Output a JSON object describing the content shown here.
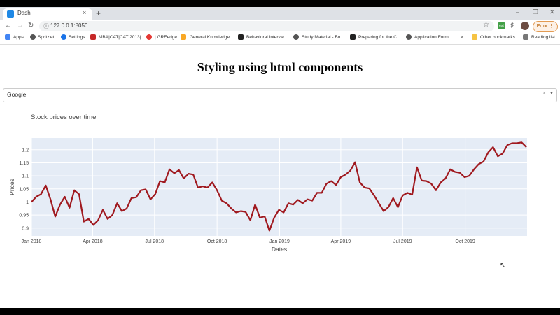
{
  "browser": {
    "tab_title": "Dash",
    "tab_close": "×",
    "new_tab": "+",
    "url": "127.0.0.1:8050",
    "error_button": "Error",
    "bookmarks": [
      "Apps",
      "Spritzlet",
      "Settings",
      "MBA|CAT|CAT 2013|...",
      "| GREedge",
      "General Knowledge...",
      "Behavioral Intervie...",
      "Study Material - Bo...",
      "Preparing for the C...",
      "Application Form"
    ],
    "other_bookmarks": "Other bookmarks",
    "reading_list": "Reading list",
    "overflow": "»"
  },
  "page": {
    "title": "Styling using html components",
    "dropdown_value": "Google",
    "dropdown_clear": "×"
  },
  "chart_data": {
    "type": "line",
    "title": "Stock prices over time",
    "xlabel": "Dates",
    "ylabel": "Prices",
    "line_color": "#a0191f",
    "plot_bg": "#e5ecf6",
    "xlim": [
      "2018-01-01",
      "2019-12-31"
    ],
    "ylim": [
      0.87,
      1.245
    ],
    "xticks": [
      {
        "date": "2018-01-01",
        "label": "Jan 2018"
      },
      {
        "date": "2018-04-01",
        "label": "Apr 2018"
      },
      {
        "date": "2018-07-01",
        "label": "Jul 2018"
      },
      {
        "date": "2018-10-01",
        "label": "Oct 2018"
      },
      {
        "date": "2019-01-01",
        "label": "Jan 2019"
      },
      {
        "date": "2019-04-01",
        "label": "Apr 2019"
      },
      {
        "date": "2019-07-01",
        "label": "Jul 2019"
      },
      {
        "date": "2019-10-01",
        "label": "Oct 2019"
      }
    ],
    "yticks": [
      0.9,
      0.95,
      1,
      1.05,
      1.1,
      1.15,
      1.2
    ],
    "series": [
      {
        "dates": [
          "2018-01-01",
          "2018-01-08",
          "2018-01-15",
          "2018-01-22",
          "2018-01-29",
          "2018-02-05",
          "2018-02-12",
          "2018-02-19",
          "2018-02-26",
          "2018-03-05",
          "2018-03-12",
          "2018-03-19",
          "2018-03-26",
          "2018-04-02",
          "2018-04-09",
          "2018-04-16",
          "2018-04-23",
          "2018-04-30",
          "2018-05-07",
          "2018-05-14",
          "2018-05-21",
          "2018-05-28",
          "2018-06-04",
          "2018-06-11",
          "2018-06-18",
          "2018-06-25",
          "2018-07-02",
          "2018-07-09",
          "2018-07-16",
          "2018-07-23",
          "2018-07-30",
          "2018-08-06",
          "2018-08-13",
          "2018-08-20",
          "2018-08-27",
          "2018-09-03",
          "2018-09-10",
          "2018-09-17",
          "2018-09-24",
          "2018-10-01",
          "2018-10-08",
          "2018-10-15",
          "2018-10-22",
          "2018-10-29",
          "2018-11-05",
          "2018-11-12",
          "2018-11-19",
          "2018-11-26",
          "2018-12-03",
          "2018-12-10",
          "2018-12-17",
          "2018-12-24",
          "2018-12-31",
          "2019-01-07",
          "2019-01-14",
          "2019-01-21",
          "2019-01-28",
          "2019-02-04",
          "2019-02-11",
          "2019-02-18",
          "2019-02-25",
          "2019-03-04",
          "2019-03-11",
          "2019-03-18",
          "2019-03-25",
          "2019-04-01",
          "2019-04-08",
          "2019-04-15",
          "2019-04-22",
          "2019-04-29",
          "2019-05-06",
          "2019-05-13",
          "2019-05-20",
          "2019-05-27",
          "2019-06-03",
          "2019-06-10",
          "2019-06-17",
          "2019-06-24",
          "2019-07-01",
          "2019-07-08",
          "2019-07-15",
          "2019-07-22",
          "2019-07-29",
          "2019-08-05",
          "2019-08-12",
          "2019-08-19",
          "2019-08-26",
          "2019-09-02",
          "2019-09-09",
          "2019-09-16",
          "2019-09-23",
          "2019-09-30",
          "2019-10-07",
          "2019-10-14",
          "2019-10-21",
          "2019-10-28",
          "2019-11-04",
          "2019-11-11",
          "2019-11-18",
          "2019-11-25",
          "2019-12-02",
          "2019-12-09",
          "2019-12-16",
          "2019-12-23",
          "2019-12-30"
        ],
        "values": [
          1.0,
          1.02,
          1.03,
          1.063,
          1.01,
          0.944,
          0.99,
          1.02,
          0.978,
          1.045,
          1.03,
          0.925,
          0.935,
          0.912,
          0.93,
          0.97,
          0.935,
          0.95,
          0.995,
          0.965,
          0.975,
          1.015,
          1.018,
          1.045,
          1.048,
          1.01,
          1.03,
          1.08,
          1.075,
          1.125,
          1.11,
          1.122,
          1.09,
          1.108,
          1.105,
          1.055,
          1.06,
          1.055,
          1.075,
          1.045,
          1.005,
          0.995,
          0.975,
          0.96,
          0.965,
          0.962,
          0.93,
          0.99,
          0.94,
          0.945,
          0.89,
          0.94,
          0.97,
          0.96,
          0.995,
          0.99,
          1.008,
          0.995,
          1.01,
          1.005,
          1.035,
          1.035,
          1.07,
          1.08,
          1.065,
          1.095,
          1.105,
          1.12,
          1.152,
          1.075,
          1.055,
          1.052,
          1.025,
          0.995,
          0.965,
          0.98,
          1.015,
          0.98,
          1.025,
          1.035,
          1.028,
          1.133,
          1.082,
          1.08,
          1.07,
          1.045,
          1.075,
          1.09,
          1.125,
          1.115,
          1.112,
          1.095,
          1.1,
          1.125,
          1.145,
          1.155,
          1.19,
          1.21,
          1.175,
          1.185,
          1.218,
          1.225,
          1.225,
          1.228,
          1.21
        ]
      }
    ]
  }
}
